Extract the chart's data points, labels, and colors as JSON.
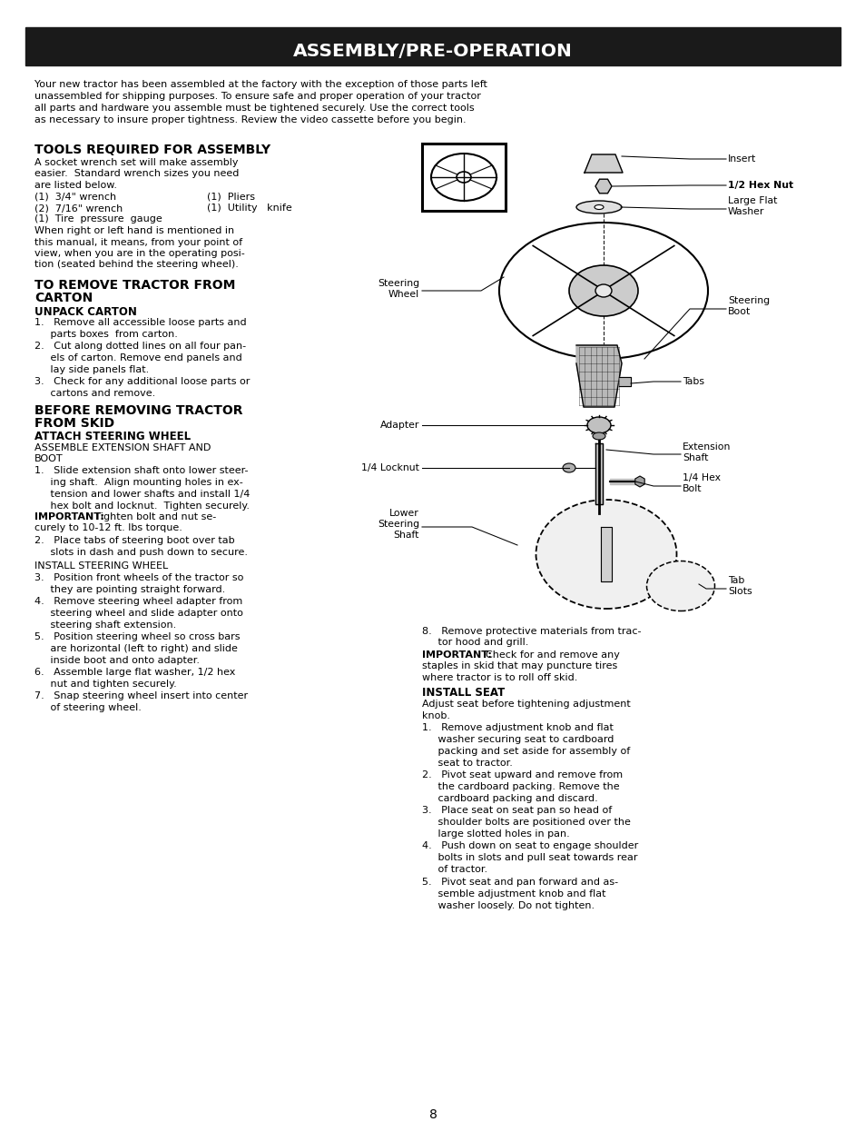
{
  "bg_color": "#ffffff",
  "header_bg": "#1a1a1a",
  "header_text": "ASSEMBLY/PRE-OPERATION",
  "header_text_color": "#ffffff",
  "page_number": "8",
  "intro_text": "Your new tractor has been assembled at the factory with the exception of those parts left\nunassembled for shipping purposes. To ensure safe and proper operation of your tractor\nall parts and hardware you assemble must be tightened securely. Use the correct tools\nas necessary to insure proper tightness. Review the video cassette before you begin.",
  "s1_title": "TOOLS REQUIRED FOR ASSEMBLY",
  "s1_body_line1": "A socket wrench set will make assembly",
  "s1_body_line2": "easier.  Standard wrench sizes you need",
  "s1_body_line3": "are listed below.",
  "s1_body_line4a": "(1)  3/4\" wrench",
  "s1_body_line4b": "(1)  Pliers",
  "s1_body_line5a": "(2)  7/16\" wrench",
  "s1_body_line5b": "(1)  Utility   knife",
  "s1_body_line6": "(1)  Tire  pressure  gauge",
  "s1_body_line7": "When right or left hand is mentioned in",
  "s1_body_line8": "this manual, it means, from your point of",
  "s1_body_line9": "view, when you are in the operating posi-",
  "s1_body_line10": "tion (seated behind the steering wheel).",
  "s2_title1": "TO REMOVE TRACTOR FROM",
  "s2_title2": "CARTON",
  "s2_sub": "UNPACK CARTON",
  "s2_body": "1.   Remove all accessible loose parts and\n     parts boxes  from carton.\n2.   Cut along dotted lines on all four pan-\n     els of carton. Remove end panels and\n     lay side panels flat.\n3.   Check for any additional loose parts or\n     cartons and remove.",
  "s3_title1": "BEFORE REMOVING TRACTOR",
  "s3_title2": "FROM SKID",
  "s3_sub1": "ATTACH STEERING WHEEL",
  "s3_sub2a": "ASSEMBLE EXTENSION SHAFT AND",
  "s3_sub2b": "BOOT",
  "s3_body1": "1.   Slide extension shaft onto lower steer-\n     ing shaft.  Align mounting holes in ex-\n     tension and lower shafts and install 1/4\n     hex bolt and locknut.  Tighten securely.",
  "s3_important": "IMPORTANT:",
  "s3_important_rest": " Tighten bolt and nut se-\ncurely to 10-12 ft. lbs torque.",
  "s3_body2": "2.   Place tabs of steering boot over tab\n     slots in dash and push down to secure.",
  "s3_sub3": "INSTALL STEERING WHEEL",
  "s3_body3": "3.   Position front wheels of the tractor so\n     they are pointing straight forward.\n4.   Remove steering wheel adapter from\n     steering wheel and slide adapter onto\n     steering shaft extension.\n5.   Position steering wheel so cross bars\n     are horizontal (left to right) and slide\n     inside boot and onto adapter.\n6.   Assemble large flat washer, 1/2 hex\n     nut and tighten securely.\n7.   Snap steering wheel insert into center\n     of steering wheel.",
  "rc_item8a": "8.   Remove protective materials from trac-",
  "rc_item8b": "     tor hood and grill.",
  "rc_important": "IMPORTANT:",
  "rc_important_rest": "  Check for and remove any\nstaples in skid that may puncture tires\nwhere tractor is to roll off skid.",
  "s4_sub": "INSTALL SEAT",
  "s4_intro": "Adjust seat before tightening adjustment\nknob.",
  "s4_body": "1.   Remove adjustment knob and flat\n     washer securing seat to cardboard\n     packing and set aside for assembly of\n     seat to tractor.\n2.   Pivot seat upward and remove from\n     the cardboard packing. Remove the\n     cardboard packing and discard.\n3.   Place seat on seat pan so head of\n     shoulder bolts are positioned over the\n     large slotted holes in pan.\n4.   Push down on seat to engage shoulder\n     bolts in slots and pull seat towards rear\n     of tractor.\n5.   Pivot seat and pan forward and as-\n     semble adjustment knob and flat\n     washer loosely. Do not tighten.",
  "lbl_insert": "Insert",
  "lbl_hexnut": "1/2 Hex Nut",
  "lbl_washer1": "Large Flat",
  "lbl_washer2": "Washer",
  "lbl_swleft1": "Steering",
  "lbl_swleft2": "Wheel",
  "lbl_sboot1": "Steering",
  "lbl_sboot2": "Boot",
  "lbl_tabs": "Tabs",
  "lbl_adapter": "Adapter",
  "lbl_ext1": "Extension",
  "lbl_ext2": "Shaft",
  "lbl_locknut": "1/4 Locknut",
  "lbl_hexbolt1": "1/4 Hex",
  "lbl_hexbolt2": "Bolt",
  "lbl_lss1": "Lower",
  "lbl_lss2": "Steering",
  "lbl_lss3": "Shaft",
  "lbl_tabslots1": "Tab",
  "lbl_tabslots2": "Slots"
}
